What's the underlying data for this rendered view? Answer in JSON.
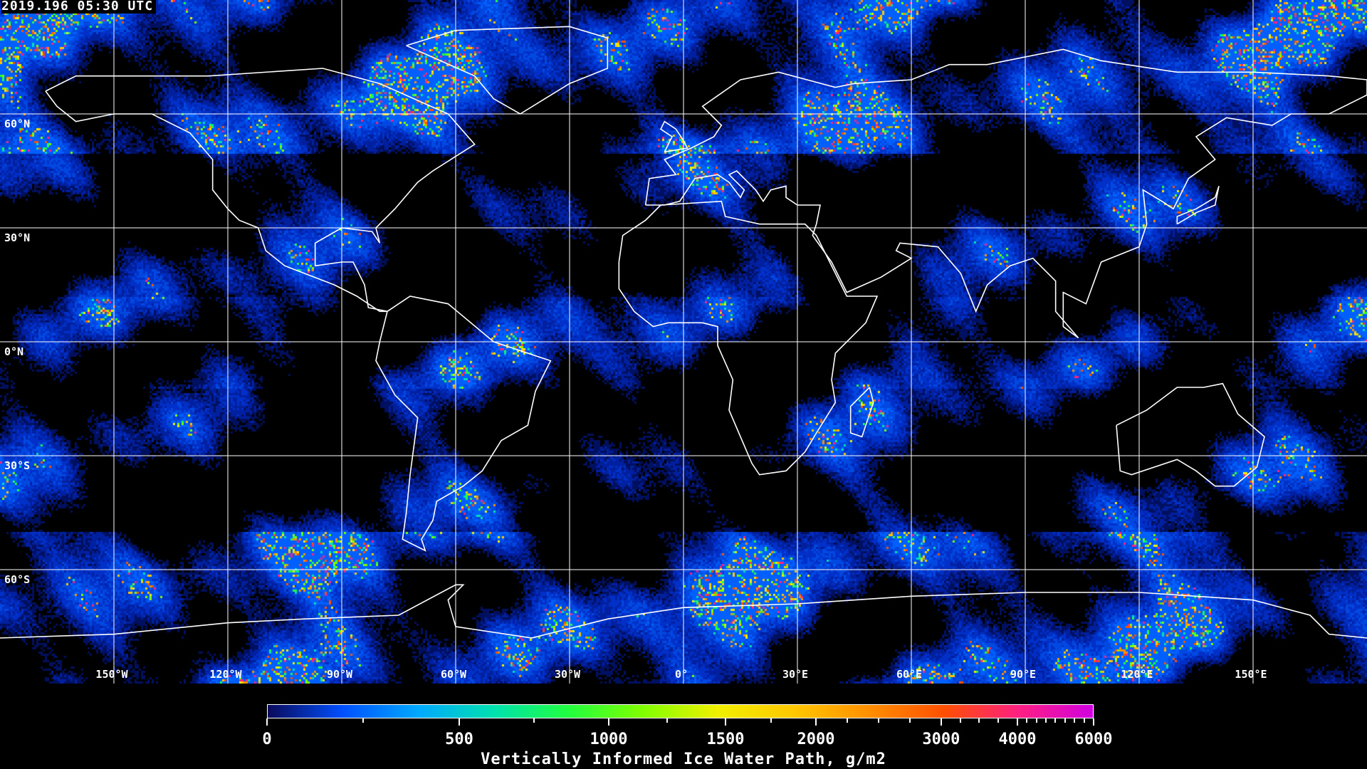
{
  "timestamp": "2019.196 05:30 UTC",
  "map": {
    "projection": "equirectangular",
    "lat_labels": [
      "60°N",
      "30°N",
      "0°N",
      "30°S",
      "60°S"
    ],
    "lat_values": [
      60,
      30,
      0,
      -30,
      -60
    ],
    "lon_labels": [
      "150°W",
      "120°W",
      "90°W",
      "60°W",
      "30°W",
      "0°",
      "30°E",
      "60°E",
      "90°E",
      "120°E",
      "150°E"
    ],
    "lon_values": [
      -150,
      -120,
      -90,
      -60,
      -30,
      0,
      30,
      60,
      90,
      120,
      150
    ],
    "grid_color": "#ffffff",
    "coastline_color": "#ffffff",
    "background": "#000000"
  },
  "colorbar": {
    "title": "Vertically Informed Ice Water Path, g/m2",
    "tick_labels": [
      "0",
      "500",
      "1000",
      "1500",
      "2000",
      "3000",
      "4000",
      "6000"
    ],
    "tick_values": [
      0,
      500,
      1000,
      1500,
      2000,
      3000,
      4000,
      6000
    ],
    "range": [
      0,
      6000
    ],
    "colors": [
      "#0a0a5a",
      "#0050ff",
      "#00a8ff",
      "#00e0b0",
      "#20ff40",
      "#80ff00",
      "#f0f000",
      "#ffc800",
      "#ff9000",
      "#ff5000",
      "#ff2080",
      "#d000e0"
    ]
  }
}
